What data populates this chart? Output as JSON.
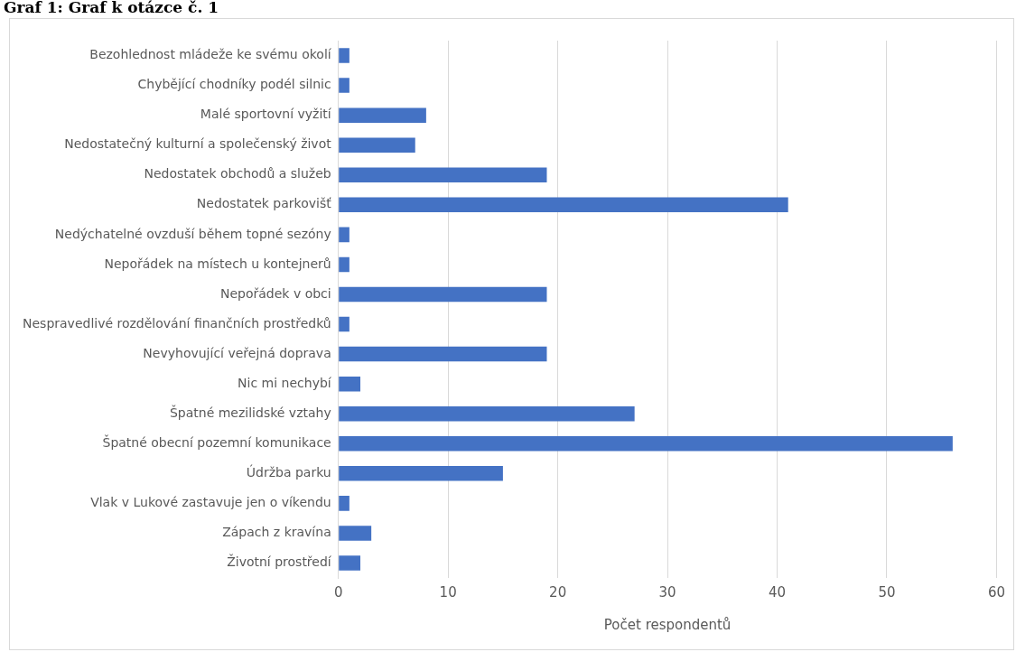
{
  "chart_data": {
    "type": "bar",
    "orientation": "horizontal",
    "title": "Graf 1: Graf k otázce č. 1",
    "xlabel": "Počet respondentů",
    "categories": [
      "Bezohlednost mládeže ke svému okolí",
      "Chybějící chodníky podél silnic",
      "Malé sportovní vyžití",
      "Nedostatečný kulturní a společenský život",
      "Nedostatek obchodů a služeb",
      "Nedostatek parkovišť",
      "Nedýchatelné ovzduší během topné sezóny",
      "Nepořádek na místech u kontejnerů",
      "Nepořádek v obci",
      "Nespravedlivé rozdělování finančních prostředků",
      "Nevyhovující veřejná doprava",
      "Nic mi nechybí",
      "Špatné mezilidské vztahy",
      "Špatné obecní pozemní komunikace",
      "Údržba parku",
      "Vlak v Lukové zastavuje jen o víkendu",
      "Zápach z kravína",
      "Životní prostředí"
    ],
    "values": [
      1,
      1,
      8,
      7,
      19,
      41,
      1,
      1,
      19,
      1,
      19,
      2,
      27,
      56,
      15,
      1,
      3,
      2
    ],
    "color": "#4472c4",
    "xlim": [
      0,
      60
    ],
    "xticks": [
      0,
      10,
      20,
      30,
      40,
      50,
      60
    ],
    "grid": "x"
  }
}
